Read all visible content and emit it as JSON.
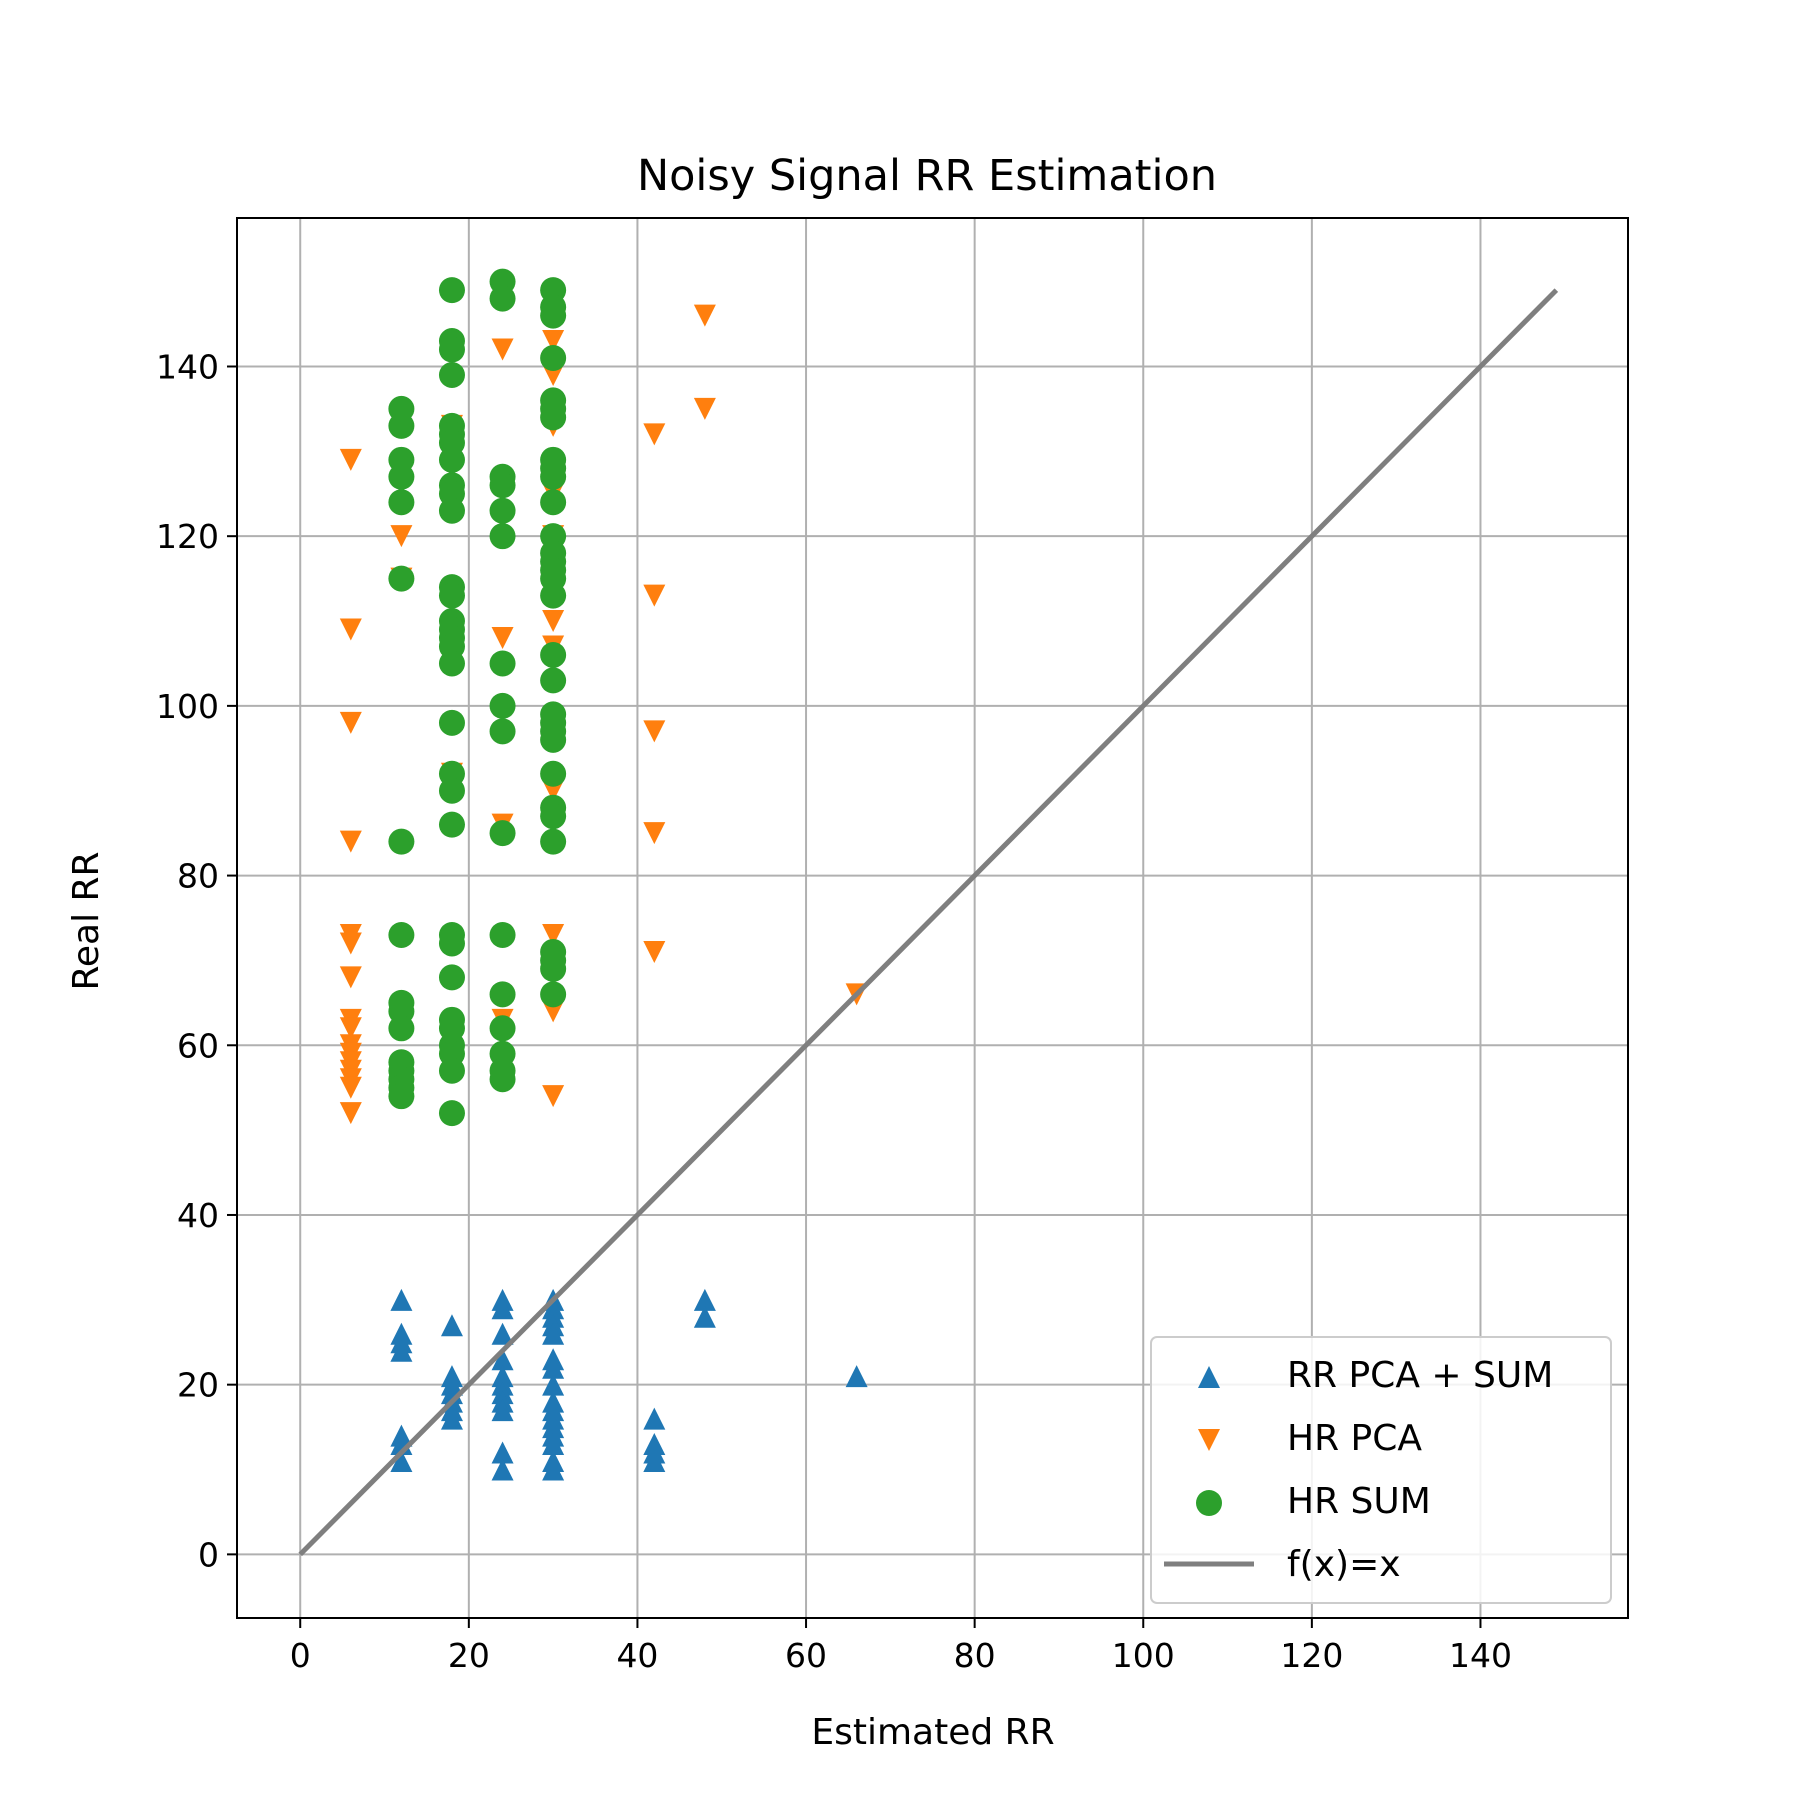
{
  "chart_data": {
    "type": "scatter",
    "title": "Noisy Signal RR Estimation",
    "xlabel": "Estimated RR",
    "ylabel": "Real RR",
    "xlim": [
      -7.5,
      157.5
    ],
    "ylim": [
      -7.5,
      157.5
    ],
    "xticks": [
      0,
      20,
      40,
      60,
      80,
      100,
      120,
      140
    ],
    "yticks": [
      0,
      20,
      40,
      60,
      80,
      100,
      120,
      140
    ],
    "grid": true,
    "legend_position": "bottom-right",
    "series": [
      {
        "name": "RR PCA + SUM",
        "marker": "triangle-up",
        "color": "#1f77b4",
        "points": [
          [
            12,
            30
          ],
          [
            12,
            26
          ],
          [
            12,
            25
          ],
          [
            12,
            24
          ],
          [
            12,
            14
          ],
          [
            12,
            13
          ],
          [
            12,
            11
          ],
          [
            18,
            27
          ],
          [
            18,
            21
          ],
          [
            18,
            20
          ],
          [
            18,
            19
          ],
          [
            18,
            18
          ],
          [
            18,
            17
          ],
          [
            18,
            16
          ],
          [
            24,
            30
          ],
          [
            24,
            29
          ],
          [
            24,
            26
          ],
          [
            24,
            23
          ],
          [
            24,
            21
          ],
          [
            24,
            20
          ],
          [
            24,
            19
          ],
          [
            24,
            18
          ],
          [
            24,
            17
          ],
          [
            24,
            12
          ],
          [
            24,
            10
          ],
          [
            30,
            30
          ],
          [
            30,
            29
          ],
          [
            30,
            28
          ],
          [
            30,
            27
          ],
          [
            30,
            26
          ],
          [
            30,
            23
          ],
          [
            30,
            22
          ],
          [
            30,
            20
          ],
          [
            30,
            18
          ],
          [
            30,
            17
          ],
          [
            30,
            16
          ],
          [
            30,
            15
          ],
          [
            30,
            14
          ],
          [
            30,
            13
          ],
          [
            30,
            11
          ],
          [
            30,
            10
          ],
          [
            42,
            16
          ],
          [
            42,
            13
          ],
          [
            42,
            12
          ],
          [
            42,
            11
          ],
          [
            48,
            30
          ],
          [
            48,
            28
          ],
          [
            66,
            21
          ]
        ]
      },
      {
        "name": "HR PCA",
        "marker": "triangle-down",
        "color": "#ff7f0e",
        "points": [
          [
            6,
            129
          ],
          [
            6,
            109
          ],
          [
            6,
            98
          ],
          [
            6,
            84
          ],
          [
            6,
            73
          ],
          [
            6,
            72
          ],
          [
            6,
            68
          ],
          [
            6,
            63
          ],
          [
            6,
            62
          ],
          [
            6,
            60
          ],
          [
            6,
            59
          ],
          [
            6,
            58
          ],
          [
            6,
            57
          ],
          [
            6,
            56
          ],
          [
            6,
            55
          ],
          [
            6,
            52
          ],
          [
            12,
            120
          ],
          [
            12,
            115
          ],
          [
            18,
            133
          ],
          [
            18,
            92
          ],
          [
            24,
            142
          ],
          [
            24,
            108
          ],
          [
            24,
            86
          ],
          [
            24,
            63
          ],
          [
            30,
            143
          ],
          [
            30,
            139
          ],
          [
            30,
            133
          ],
          [
            30,
            125
          ],
          [
            30,
            120
          ],
          [
            30,
            110
          ],
          [
            30,
            107
          ],
          [
            30,
            90
          ],
          [
            30,
            73
          ],
          [
            30,
            64
          ],
          [
            30,
            54
          ],
          [
            42,
            132
          ],
          [
            42,
            113
          ],
          [
            42,
            97
          ],
          [
            42,
            85
          ],
          [
            42,
            71
          ],
          [
            48,
            146
          ],
          [
            48,
            135
          ],
          [
            66,
            66
          ]
        ]
      },
      {
        "name": "HR SUM",
        "marker": "circle",
        "color": "#2ca02c",
        "points": [
          [
            12,
            135
          ],
          [
            12,
            133
          ],
          [
            12,
            129
          ],
          [
            12,
            127
          ],
          [
            12,
            124
          ],
          [
            12,
            115
          ],
          [
            12,
            84
          ],
          [
            12,
            73
          ],
          [
            12,
            65
          ],
          [
            12,
            64
          ],
          [
            12,
            62
          ],
          [
            12,
            58
          ],
          [
            12,
            57
          ],
          [
            12,
            56
          ],
          [
            12,
            55
          ],
          [
            12,
            54
          ],
          [
            18,
            149
          ],
          [
            18,
            143
          ],
          [
            18,
            142
          ],
          [
            18,
            139
          ],
          [
            18,
            133
          ],
          [
            18,
            132
          ],
          [
            18,
            131
          ],
          [
            18,
            129
          ],
          [
            18,
            126
          ],
          [
            18,
            125
          ],
          [
            18,
            123
          ],
          [
            18,
            114
          ],
          [
            18,
            113
          ],
          [
            18,
            110
          ],
          [
            18,
            109
          ],
          [
            18,
            108
          ],
          [
            18,
            107
          ],
          [
            18,
            105
          ],
          [
            18,
            98
          ],
          [
            18,
            92
          ],
          [
            18,
            90
          ],
          [
            18,
            86
          ],
          [
            18,
            73
          ],
          [
            18,
            72
          ],
          [
            18,
            68
          ],
          [
            18,
            63
          ],
          [
            18,
            62
          ],
          [
            18,
            60
          ],
          [
            18,
            59
          ],
          [
            18,
            57
          ],
          [
            18,
            52
          ],
          [
            24,
            150
          ],
          [
            24,
            148
          ],
          [
            24,
            127
          ],
          [
            24,
            126
          ],
          [
            24,
            123
          ],
          [
            24,
            120
          ],
          [
            24,
            105
          ],
          [
            24,
            100
          ],
          [
            24,
            97
          ],
          [
            24,
            85
          ],
          [
            24,
            73
          ],
          [
            24,
            66
          ],
          [
            24,
            62
          ],
          [
            24,
            59
          ],
          [
            24,
            57
          ],
          [
            24,
            56
          ],
          [
            30,
            149
          ],
          [
            30,
            147
          ],
          [
            30,
            146
          ],
          [
            30,
            141
          ],
          [
            30,
            136
          ],
          [
            30,
            135
          ],
          [
            30,
            134
          ],
          [
            30,
            129
          ],
          [
            30,
            128
          ],
          [
            30,
            127
          ],
          [
            30,
            124
          ],
          [
            30,
            120
          ],
          [
            30,
            118
          ],
          [
            30,
            117
          ],
          [
            30,
            116
          ],
          [
            30,
            115
          ],
          [
            30,
            113
          ],
          [
            30,
            106
          ],
          [
            30,
            103
          ],
          [
            30,
            99
          ],
          [
            30,
            98
          ],
          [
            30,
            97
          ],
          [
            30,
            96
          ],
          [
            30,
            92
          ],
          [
            30,
            88
          ],
          [
            30,
            87
          ],
          [
            30,
            84
          ],
          [
            30,
            71
          ],
          [
            30,
            70
          ],
          [
            30,
            69
          ],
          [
            30,
            66
          ]
        ]
      },
      {
        "name": "f(x)=x",
        "marker": "line",
        "color": "#7f7f7f",
        "points": [
          [
            0,
            0
          ],
          [
            149,
            149
          ]
        ]
      }
    ]
  }
}
